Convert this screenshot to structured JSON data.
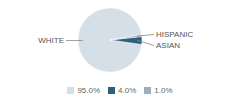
{
  "chart_data": {
    "type": "pie",
    "categories": [
      "WHITE",
      "ASIAN",
      "HISPANIC"
    ],
    "values": [
      95.0,
      4.0,
      1.0
    ],
    "value_labels": [
      "95.0%",
      "4.0%",
      "1.0%"
    ],
    "colors": [
      "#d4dfe8",
      "#2e5f7c",
      "#9ab0bf"
    ],
    "legend": "bottom"
  }
}
